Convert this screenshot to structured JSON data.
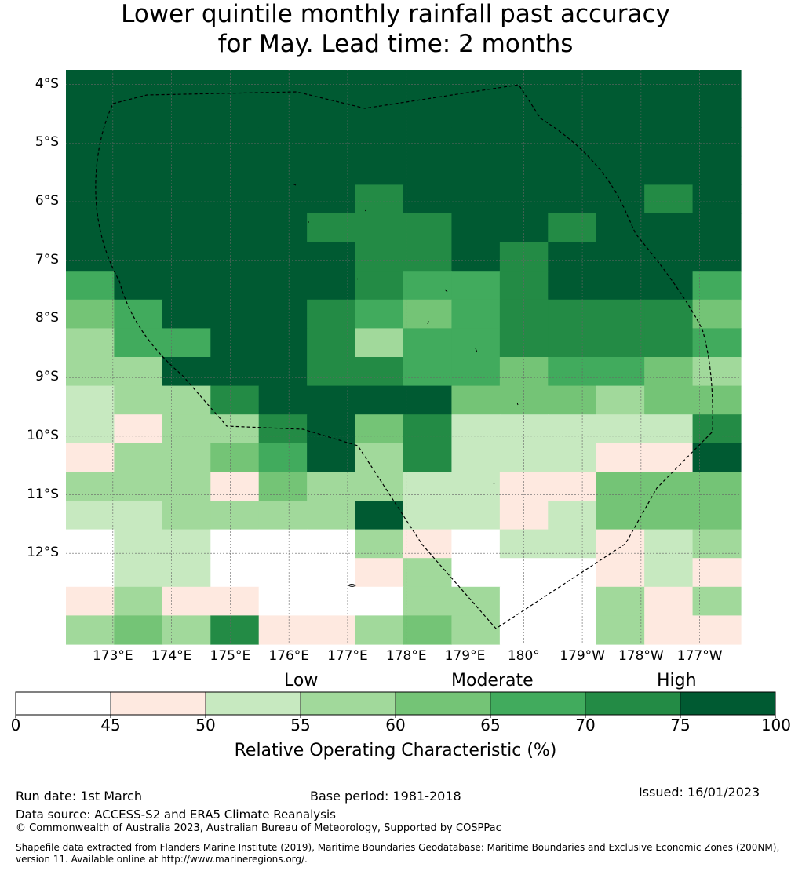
{
  "title": {
    "line1": "Lower quintile monthly rainfall past accuracy",
    "line2": "for May. Lead time: 2 months"
  },
  "map": {
    "lat_labels": [
      "4°S",
      "5°S",
      "6°S",
      "7°S",
      "8°S",
      "9°S",
      "10°S",
      "11°S",
      "12°S"
    ],
    "lon_labels": [
      "173°E",
      "174°E",
      "175°E",
      "176°E",
      "177°E",
      "178°E",
      "179°E",
      "180°",
      "179°W",
      "178°W",
      "177°W"
    ],
    "lat_range_deg_south": [
      3.75,
      13.55
    ],
    "lon_range_deg_east": [
      172.2,
      183.7
    ],
    "grid_cell_deg": 0.833,
    "category_colors": [
      "#ffffff",
      "#fee9e0",
      "#c7e9c0",
      "#a1d99b",
      "#74c476",
      "#41ab5d",
      "#238b45",
      "#005a32"
    ],
    "cell_categories": [
      "77777777777777",
      "77777777777777",
      "77777777777777",
      "77777777777777",
      "77777767777767",
      "77777666776777",
      "77777766767777",
      "57777765567775",
      "45777654566664",
      "35577635566665",
      "33777665545543",
      "23367777444344",
      "21336746222226",
      "13345736222117",
      "33314332211444",
      "22333372212444",
      "02200031022123",
      "02200013000121",
      "13110003300313",
      "34361134300311"
    ]
  },
  "colorbar": {
    "category_labels": [
      "Low",
      "Moderate",
      "High"
    ],
    "ticks": [
      "0",
      "45",
      "50",
      "55",
      "60",
      "65",
      "70",
      "75",
      "100"
    ],
    "title": "Relative Operating Characteristic (%)"
  },
  "footer": {
    "run_date": "Run date: 1st March",
    "base_period": "Base period: 1981-2018",
    "issued": "Issued: 16/01/2023",
    "data_source": "Data source: ACCESS-S2 and ERA5 Climate Reanalysis",
    "copyright": "© Commonwealth of Australia 2023, Australian Bureau of Meteorology, Supported by COSPPac",
    "shapefile": "Shapefile data extracted from Flanders Marine Institute (2019), Maritime Boundaries Geodatabase: Maritime Boundaries and Exclusive Economic Zones (200NM), version 11. Available online at http://www.marineregions.org/."
  }
}
